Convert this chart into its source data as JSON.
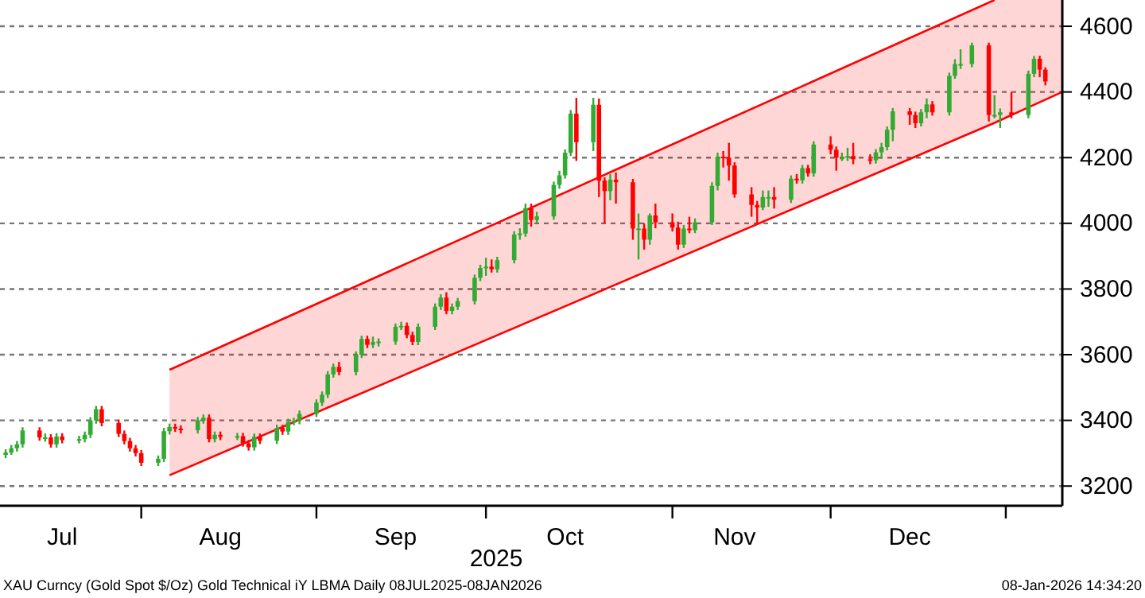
{
  "chart_data": {
    "type": "candlestick",
    "xlabel": "2025",
    "xlim": [
      "2025-07-07",
      "2026-01-11"
    ],
    "ylim": [
      3140,
      4680
    ],
    "xticks": [
      {
        "value": "2025-07-18",
        "label": "Jul"
      },
      {
        "value": "2025-08-01",
        "label": null
      },
      {
        "value": "2025-08-15",
        "label": "Aug"
      },
      {
        "value": "2025-09-01",
        "label": null
      },
      {
        "value": "2025-09-15",
        "label": "Sep"
      },
      {
        "value": "2025-10-01",
        "label": null
      },
      {
        "value": "2025-10-15",
        "label": "Oct"
      },
      {
        "value": "2025-11-03",
        "label": null
      },
      {
        "value": "2025-11-14",
        "label": "Nov"
      },
      {
        "value": "2025-12-01",
        "label": null
      },
      {
        "value": "2025-12-15",
        "label": "Dec"
      },
      {
        "value": "2026-01-01",
        "label": null
      }
    ],
    "yticks": [
      3200,
      3400,
      3600,
      3800,
      4000,
      4200,
      4400,
      4600
    ],
    "grid": "y",
    "annotations": [
      "XAU Curncy (Gold Spot  $/Oz) Gold Technical iY LBMA Daily 08JUL2025-08JAN2026",
      "08-Jan-2026 14:34:20"
    ],
    "series": [
      {
        "type": "line",
        "color": "#ff0000",
        "x": [
          "2025-08-06",
          "2025-12-30",
          "2026-01-11"
        ],
        "values": [
          3233,
          4306,
          4400
        ],
        "lower": [
          3233,
          4306,
          4400
        ],
        "upper": [
          3554,
          4680,
          4680
        ]
      },
      {
        "type": "line",
        "color": "#ff0000",
        "x": [
          "2025-08-06",
          "2025-12-30"
        ],
        "values": [
          3554,
          4680
        ]
      },
      {
        "type": "candlestick",
        "x": [
          "2025-07-08",
          "2025-07-09",
          "2025-07-10",
          "2025-07-11",
          "2025-07-14",
          "2025-07-15",
          "2025-07-16",
          "2025-07-17",
          "2025-07-18",
          "2025-07-21",
          "2025-07-22",
          "2025-07-23",
          "2025-07-24",
          "2025-07-25",
          "2025-07-28",
          "2025-07-29",
          "2025-07-30",
          "2025-07-31",
          "2025-08-01",
          "2025-08-04",
          "2025-08-05",
          "2025-08-06",
          "2025-08-07",
          "2025-08-08",
          "2025-08-11",
          "2025-08-12",
          "2025-08-13",
          "2025-08-14",
          "2025-08-15",
          "2025-08-18",
          "2025-08-19",
          "2025-08-20",
          "2025-08-21",
          "2025-08-22",
          "2025-08-25",
          "2025-08-26",
          "2025-08-27",
          "2025-08-28",
          "2025-08-29",
          "2025-09-01",
          "2025-09-02",
          "2025-09-03",
          "2025-09-04",
          "2025-09-05",
          "2025-09-08",
          "2025-09-09",
          "2025-09-10",
          "2025-09-11",
          "2025-09-12",
          "2025-09-15",
          "2025-09-16",
          "2025-09-17",
          "2025-09-18",
          "2025-09-19",
          "2025-09-22",
          "2025-09-23",
          "2025-09-24",
          "2025-09-25",
          "2025-09-26",
          "2025-09-29",
          "2025-09-30",
          "2025-10-01",
          "2025-10-02",
          "2025-10-03",
          "2025-10-06",
          "2025-10-07",
          "2025-10-08",
          "2025-10-09",
          "2025-10-10",
          "2025-10-13",
          "2025-10-14",
          "2025-10-15",
          "2025-10-16",
          "2025-10-17",
          "2025-10-20",
          "2025-10-21",
          "2025-10-22",
          "2025-10-23",
          "2025-10-24",
          "2025-10-27",
          "2025-10-28",
          "2025-10-29",
          "2025-10-30",
          "2025-10-31",
          "2025-11-03",
          "2025-11-04",
          "2025-11-05",
          "2025-11-06",
          "2025-11-07",
          "2025-11-10",
          "2025-11-11",
          "2025-11-12",
          "2025-11-13",
          "2025-11-14",
          "2025-11-17",
          "2025-11-18",
          "2025-11-19",
          "2025-11-20",
          "2025-11-21",
          "2025-11-24",
          "2025-11-25",
          "2025-11-26",
          "2025-11-27",
          "2025-11-28",
          "2025-12-01",
          "2025-12-02",
          "2025-12-03",
          "2025-12-04",
          "2025-12-05",
          "2025-12-08",
          "2025-12-09",
          "2025-12-10",
          "2025-12-11",
          "2025-12-12",
          "2025-12-15",
          "2025-12-16",
          "2025-12-17",
          "2025-12-18",
          "2025-12-19",
          "2025-12-22",
          "2025-12-23",
          "2025-12-24",
          "2025-12-26",
          "2025-12-29",
          "2025-12-30",
          "2025-12-31",
          "2026-01-02",
          "2026-01-05",
          "2026-01-06",
          "2026-01-07",
          "2026-01-08"
        ],
        "ohlc": [
          [
            3295,
            3312,
            3285,
            3302
          ],
          [
            3302,
            3325,
            3295,
            3315
          ],
          [
            3315,
            3337,
            3305,
            3327
          ],
          [
            3327,
            3379,
            3317,
            3369
          ],
          [
            3369,
            3379,
            3338,
            3348
          ],
          [
            3348,
            3360,
            3335,
            3348
          ],
          [
            3348,
            3358,
            3317,
            3327
          ],
          [
            3327,
            3361,
            3317,
            3351
          ],
          [
            3351,
            3361,
            3330,
            3340
          ],
          [
            3340,
            3353,
            3330,
            3343
          ],
          [
            3343,
            3366,
            3333,
            3356
          ],
          [
            3356,
            3410,
            3346,
            3400
          ],
          [
            3400,
            3444,
            3390,
            3434
          ],
          [
            3434,
            3444,
            3382,
            3392
          ],
          [
            3392,
            3402,
            3349,
            3359
          ],
          [
            3359,
            3369,
            3327,
            3337
          ],
          [
            3337,
            3347,
            3305,
            3315
          ],
          [
            3315,
            3325,
            3290,
            3300
          ],
          [
            3300,
            3310,
            3261,
            3271
          ],
          [
            3271,
            3293,
            3261,
            3283
          ],
          [
            3283,
            3377,
            3273,
            3367
          ],
          [
            3367,
            3390,
            3357,
            3380
          ],
          [
            3380,
            3390,
            3365,
            3375
          ],
          [
            3375,
            3385,
            3360,
            3370
          ],
          [
            3370,
            3410,
            3360,
            3400
          ],
          [
            3400,
            3418,
            3390,
            3408
          ],
          [
            3408,
            3418,
            3333,
            3343
          ],
          [
            3343,
            3366,
            3333,
            3356
          ],
          [
            3356,
            3366,
            3340,
            3350
          ],
          [
            3350,
            3362,
            3340,
            3352
          ],
          [
            3352,
            3362,
            3320,
            3330
          ],
          [
            3330,
            3340,
            3308,
            3318
          ],
          [
            3318,
            3360,
            3308,
            3350
          ],
          [
            3350,
            3360,
            3328,
            3338
          ],
          [
            3338,
            3387,
            3328,
            3377
          ],
          [
            3377,
            3387,
            3356,
            3366
          ],
          [
            3366,
            3405,
            3356,
            3395
          ],
          [
            3395,
            3408,
            3385,
            3398
          ],
          [
            3398,
            3430,
            3388,
            3420
          ],
          [
            3420,
            3464,
            3410,
            3454
          ],
          [
            3454,
            3488,
            3444,
            3478
          ],
          [
            3478,
            3550,
            3468,
            3540
          ],
          [
            3540,
            3573,
            3530,
            3563
          ],
          [
            3563,
            3578,
            3537,
            3547
          ],
          [
            3547,
            3610,
            3537,
            3600
          ],
          [
            3600,
            3658,
            3590,
            3648
          ],
          [
            3648,
            3658,
            3620,
            3630
          ],
          [
            3630,
            3655,
            3620,
            3639
          ],
          [
            3639,
            3650,
            3625,
            3640
          ],
          [
            3640,
            3695,
            3630,
            3685
          ],
          [
            3685,
            3700,
            3675,
            3688
          ],
          [
            3688,
            3698,
            3650,
            3660
          ],
          [
            3660,
            3670,
            3629,
            3639
          ],
          [
            3639,
            3695,
            3629,
            3685
          ],
          [
            3685,
            3756,
            3675,
            3746
          ],
          [
            3746,
            3784,
            3736,
            3774
          ],
          [
            3774,
            3790,
            3723,
            3733
          ],
          [
            3733,
            3756,
            3723,
            3746
          ],
          [
            3746,
            3773,
            3736,
            3763
          ],
          [
            3763,
            3844,
            3753,
            3834
          ],
          [
            3834,
            3874,
            3824,
            3864
          ],
          [
            3864,
            3895,
            3840,
            3868
          ],
          [
            3868,
            3890,
            3850,
            3860
          ],
          [
            3860,
            3898,
            3850,
            3888
          ],
          [
            3888,
            3976,
            3878,
            3966
          ],
          [
            3966,
            3985,
            3950,
            3969
          ],
          [
            3969,
            4060,
            3959,
            4046
          ],
          [
            4046,
            4060,
            3990,
            4010
          ],
          [
            4010,
            4035,
            4000,
            4021
          ],
          [
            4021,
            4127,
            4011,
            4117
          ],
          [
            4117,
            4160,
            4105,
            4146
          ],
          [
            4146,
            4225,
            4136,
            4215
          ],
          [
            4215,
            4345,
            4205,
            4334
          ],
          [
            4334,
            4382,
            4190,
            4247
          ],
          [
            4247,
            4382,
            4220,
            4361
          ],
          [
            4361,
            4380,
            4080,
            4130
          ],
          [
            4130,
            4140,
            4000,
            4098
          ],
          [
            4098,
            4150,
            4070,
            4133
          ],
          [
            4133,
            4155,
            4060,
            4125
          ],
          [
            4125,
            4135,
            3950,
            3984
          ],
          [
            3984,
            4030,
            3890,
            3984
          ],
          [
            3984,
            4000,
            3920,
            3950
          ],
          [
            3950,
            4030,
            3935,
            4024
          ],
          [
            4024,
            4060,
            3985,
            4003
          ],
          [
            4003,
            4030,
            3975,
            3987
          ],
          [
            3987,
            4005,
            3920,
            3935
          ],
          [
            3935,
            3995,
            3925,
            3984
          ],
          [
            3984,
            4020,
            3970,
            3979
          ],
          [
            3979,
            4015,
            3970,
            4003
          ],
          [
            4003,
            4125,
            3995,
            4114
          ],
          [
            4114,
            4215,
            4100,
            4203
          ],
          [
            4203,
            4220,
            4170,
            4200
          ],
          [
            4200,
            4245,
            4130,
            4176
          ],
          [
            4176,
            4186,
            4078,
            4088
          ],
          [
            4088,
            4110,
            4020,
            4056
          ],
          [
            4056,
            4068,
            4000,
            4048
          ],
          [
            4048,
            4100,
            4040,
            4080
          ],
          [
            4080,
            4100,
            4050,
            4080
          ],
          [
            4080,
            4110,
            4045,
            4072
          ],
          [
            4072,
            4146,
            4062,
            4136
          ],
          [
            4136,
            4150,
            4121,
            4131
          ],
          [
            4131,
            4178,
            4121,
            4168
          ],
          [
            4168,
            4178,
            4142,
            4152
          ],
          [
            4152,
            4250,
            4142,
            4240
          ],
          [
            4240,
            4265,
            4210,
            4224
          ],
          [
            4224,
            4234,
            4160,
            4200
          ],
          [
            4200,
            4215,
            4190,
            4200
          ],
          [
            4200,
            4230,
            4190,
            4205
          ],
          [
            4205,
            4245,
            4180,
            4195
          ],
          [
            4195,
            4210,
            4180,
            4192
          ],
          [
            4192,
            4226,
            4182,
            4216
          ],
          [
            4216,
            4245,
            4196,
            4232
          ],
          [
            4232,
            4295,
            4222,
            4285
          ],
          [
            4285,
            4351,
            4250,
            4341
          ],
          [
            4341,
            4351,
            4300,
            4330
          ],
          [
            4330,
            4340,
            4290,
            4305
          ],
          [
            4305,
            4348,
            4295,
            4338
          ],
          [
            4338,
            4380,
            4320,
            4362
          ],
          [
            4362,
            4372,
            4328,
            4338
          ],
          [
            4338,
            4459,
            4328,
            4449
          ],
          [
            4449,
            4500,
            4440,
            4485
          ],
          [
            4485,
            4530,
            4470,
            4485
          ],
          [
            4485,
            4550,
            4475,
            4542
          ],
          [
            4542,
            4550,
            4310,
            4330
          ],
          [
            4330,
            4390,
            4320,
            4330
          ],
          [
            4330,
            4350,
            4290,
            4338
          ],
          [
            4338,
            4400,
            4320,
            4330
          ],
          [
            4330,
            4465,
            4320,
            4455
          ],
          [
            4455,
            4510,
            4445,
            4501
          ],
          [
            4501,
            4510,
            4445,
            4468
          ],
          [
            4468,
            4475,
            4420,
            4432
          ]
        ],
        "colors": [
          "#33aa33",
          "#33aa33",
          "#33aa33",
          "#33aa33",
          "#ff0000",
          "#33aa33",
          "#ff0000",
          "#33aa33",
          "#ff0000",
          "#33aa33",
          "#33aa33",
          "#33aa33",
          "#33aa33",
          "#ff0000",
          "#ff0000",
          "#ff0000",
          "#ff0000",
          "#ff0000",
          "#ff0000",
          "#33aa33",
          "#33aa33",
          "#33aa33",
          "#ff0000",
          "#ff0000",
          "#33aa33",
          "#33aa33",
          "#ff0000",
          "#33aa33",
          "#ff0000",
          "#33aa33",
          "#ff0000",
          "#ff0000",
          "#33aa33",
          "#ff0000",
          "#33aa33",
          "#ff0000",
          "#33aa33",
          "#33aa33",
          "#33aa33",
          "#33aa33",
          "#33aa33",
          "#33aa33",
          "#33aa33",
          "#ff0000",
          "#33aa33",
          "#33aa33",
          "#ff0000",
          "#33aa33",
          "#33aa33",
          "#33aa33",
          "#33aa33",
          "#ff0000",
          "#ff0000",
          "#33aa33",
          "#33aa33",
          "#33aa33",
          "#ff0000",
          "#33aa33",
          "#33aa33",
          "#33aa33",
          "#33aa33",
          "#33aa33",
          "#ff0000",
          "#33aa33",
          "#33aa33",
          "#33aa33",
          "#33aa33",
          "#ff0000",
          "#33aa33",
          "#33aa33",
          "#33aa33",
          "#33aa33",
          "#33aa33",
          "#ff0000",
          "#33aa33",
          "#ff0000",
          "#ff0000",
          "#33aa33",
          "#ff0000",
          "#ff0000",
          "#33aa33",
          "#ff0000",
          "#33aa33",
          "#ff0000",
          "#ff0000",
          "#ff0000",
          "#33aa33",
          "#ff0000",
          "#33aa33",
          "#33aa33",
          "#33aa33",
          "#ff0000",
          "#ff0000",
          "#ff0000",
          "#ff0000",
          "#ff0000",
          "#33aa33",
          "#33aa33",
          "#ff0000",
          "#33aa33",
          "#ff0000",
          "#33aa33",
          "#ff0000",
          "#33aa33",
          "#ff0000",
          "#ff0000",
          "#33aa33",
          "#33aa33",
          "#ff0000",
          "#ff0000",
          "#33aa33",
          "#33aa33",
          "#33aa33",
          "#33aa33",
          "#ff0000",
          "#ff0000",
          "#33aa33",
          "#33aa33",
          "#ff0000",
          "#33aa33",
          "#33aa33",
          "#33aa33",
          "#33aa33",
          "#ff0000",
          "#33aa33",
          "#33aa33",
          "#ff0000",
          "#33aa33",
          "#33aa33",
          "#ff0000",
          "#ff0000"
        ]
      }
    ]
  }
}
